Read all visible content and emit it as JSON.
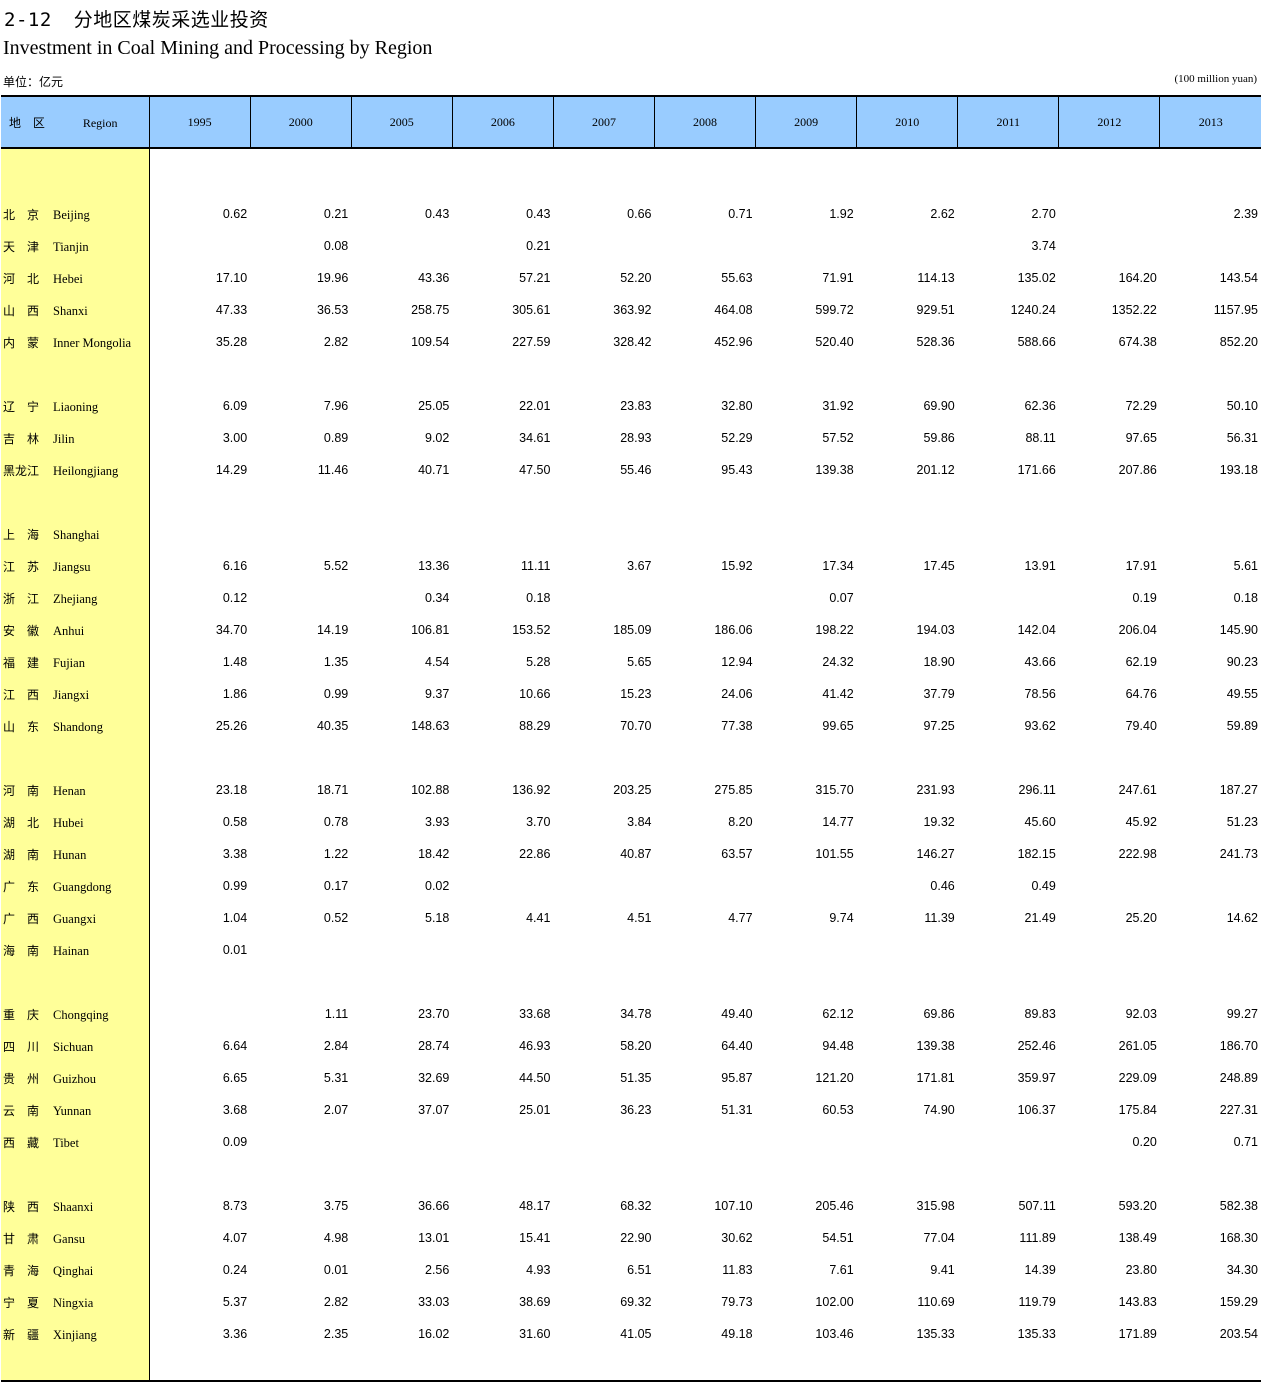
{
  "header": {
    "table_no": "2-12",
    "title_zh": "分地区煤炭采选业投资",
    "title_en": "Investment in Coal Mining and Processing by Region",
    "unit_zh": "单位：亿元",
    "unit_en": "(100 million yuan)"
  },
  "columns": {
    "region_zh": "地 区",
    "region_en": "Region",
    "years": [
      "1995",
      "2000",
      "2005",
      "2006",
      "2007",
      "2008",
      "2009",
      "2010",
      "2011",
      "2012",
      "2013"
    ]
  },
  "groups": [
    [
      {
        "zh": "北　京",
        "en": "Beijing",
        "v": [
          "0.62",
          "0.21",
          "0.43",
          "0.43",
          "0.66",
          "0.71",
          "1.92",
          "2.62",
          "2.70",
          "",
          "2.39"
        ]
      },
      {
        "zh": "天　津",
        "en": "Tianjin",
        "v": [
          "",
          "0.08",
          "",
          "0.21",
          "",
          "",
          "",
          "",
          "3.74",
          "",
          ""
        ]
      },
      {
        "zh": "河　北",
        "en": "Hebei",
        "v": [
          "17.10",
          "19.96",
          "43.36",
          "57.21",
          "52.20",
          "55.63",
          "71.91",
          "114.13",
          "135.02",
          "164.20",
          "143.54"
        ]
      },
      {
        "zh": "山　西",
        "en": "Shanxi",
        "v": [
          "47.33",
          "36.53",
          "258.75",
          "305.61",
          "363.92",
          "464.08",
          "599.72",
          "929.51",
          "1240.24",
          "1352.22",
          "1157.95"
        ]
      },
      {
        "zh": "内　蒙",
        "en": "Inner Mongolia",
        "v": [
          "35.28",
          "2.82",
          "109.54",
          "227.59",
          "328.42",
          "452.96",
          "520.40",
          "528.36",
          "588.66",
          "674.38",
          "852.20"
        ]
      }
    ],
    [
      {
        "zh": "辽　宁",
        "en": "Liaoning",
        "v": [
          "6.09",
          "7.96",
          "25.05",
          "22.01",
          "23.83",
          "32.80",
          "31.92",
          "69.90",
          "62.36",
          "72.29",
          "50.10"
        ]
      },
      {
        "zh": "吉　林",
        "en": "Jilin",
        "v": [
          "3.00",
          "0.89",
          "9.02",
          "34.61",
          "28.93",
          "52.29",
          "57.52",
          "59.86",
          "88.11",
          "97.65",
          "56.31"
        ]
      },
      {
        "zh": "黑龙江",
        "en": "Heilongjiang",
        "v": [
          "14.29",
          "11.46",
          "40.71",
          "47.50",
          "55.46",
          "95.43",
          "139.38",
          "201.12",
          "171.66",
          "207.86",
          "193.18"
        ]
      }
    ],
    [
      {
        "zh": "上　海",
        "en": "Shanghai",
        "v": [
          "",
          "",
          "",
          "",
          "",
          "",
          "",
          "",
          "",
          "",
          ""
        ]
      },
      {
        "zh": "江　苏",
        "en": "Jiangsu",
        "v": [
          "6.16",
          "5.52",
          "13.36",
          "11.11",
          "3.67",
          "15.92",
          "17.34",
          "17.45",
          "13.91",
          "17.91",
          "5.61"
        ]
      },
      {
        "zh": "浙　江",
        "en": "Zhejiang",
        "v": [
          "0.12",
          "",
          "0.34",
          "0.18",
          "",
          "",
          "0.07",
          "",
          "",
          "0.19",
          "0.18"
        ]
      },
      {
        "zh": "安　徽",
        "en": "Anhui",
        "v": [
          "34.70",
          "14.19",
          "106.81",
          "153.52",
          "185.09",
          "186.06",
          "198.22",
          "194.03",
          "142.04",
          "206.04",
          "145.90"
        ]
      },
      {
        "zh": "福　建",
        "en": "Fujian",
        "v": [
          "1.48",
          "1.35",
          "4.54",
          "5.28",
          "5.65",
          "12.94",
          "24.32",
          "18.90",
          "43.66",
          "62.19",
          "90.23"
        ]
      },
      {
        "zh": "江　西",
        "en": "Jiangxi",
        "v": [
          "1.86",
          "0.99",
          "9.37",
          "10.66",
          "15.23",
          "24.06",
          "41.42",
          "37.79",
          "78.56",
          "64.76",
          "49.55"
        ]
      },
      {
        "zh": "山　东",
        "en": "Shandong",
        "v": [
          "25.26",
          "40.35",
          "148.63",
          "88.29",
          "70.70",
          "77.38",
          "99.65",
          "97.25",
          "93.62",
          "79.40",
          "59.89"
        ]
      }
    ],
    [
      {
        "zh": "河　南",
        "en": "Henan",
        "v": [
          "23.18",
          "18.71",
          "102.88",
          "136.92",
          "203.25",
          "275.85",
          "315.70",
          "231.93",
          "296.11",
          "247.61",
          "187.27"
        ]
      },
      {
        "zh": "湖　北",
        "en": "Hubei",
        "v": [
          "0.58",
          "0.78",
          "3.93",
          "3.70",
          "3.84",
          "8.20",
          "14.77",
          "19.32",
          "45.60",
          "45.92",
          "51.23"
        ]
      },
      {
        "zh": "湖　南",
        "en": "Hunan",
        "v": [
          "3.38",
          "1.22",
          "18.42",
          "22.86",
          "40.87",
          "63.57",
          "101.55",
          "146.27",
          "182.15",
          "222.98",
          "241.73"
        ]
      },
      {
        "zh": "广　东",
        "en": "Guangdong",
        "v": [
          "0.99",
          "0.17",
          "0.02",
          "",
          "",
          "",
          "",
          "0.46",
          "0.49",
          "",
          ""
        ]
      },
      {
        "zh": "广　西",
        "en": "Guangxi",
        "v": [
          "1.04",
          "0.52",
          "5.18",
          "4.41",
          "4.51",
          "4.77",
          "9.74",
          "11.39",
          "21.49",
          "25.20",
          "14.62"
        ]
      },
      {
        "zh": "海　南",
        "en": "Hainan",
        "v": [
          "0.01",
          "",
          "",
          "",
          "",
          "",
          "",
          "",
          "",
          "",
          ""
        ]
      }
    ],
    [
      {
        "zh": "重　庆",
        "en": "Chongqing",
        "v": [
          "",
          "1.11",
          "23.70",
          "33.68",
          "34.78",
          "49.40",
          "62.12",
          "69.86",
          "89.83",
          "92.03",
          "99.27"
        ]
      },
      {
        "zh": "四　川",
        "en": "Sichuan",
        "v": [
          "6.64",
          "2.84",
          "28.74",
          "46.93",
          "58.20",
          "64.40",
          "94.48",
          "139.38",
          "252.46",
          "261.05",
          "186.70"
        ]
      },
      {
        "zh": "贵　州",
        "en": "Guizhou",
        "v": [
          "6.65",
          "5.31",
          "32.69",
          "44.50",
          "51.35",
          "95.87",
          "121.20",
          "171.81",
          "359.97",
          "229.09",
          "248.89"
        ]
      },
      {
        "zh": "云　南",
        "en": "Yunnan",
        "v": [
          "3.68",
          "2.07",
          "37.07",
          "25.01",
          "36.23",
          "51.31",
          "60.53",
          "74.90",
          "106.37",
          "175.84",
          "227.31"
        ]
      },
      {
        "zh": "西　藏",
        "en": "Tibet",
        "v": [
          "0.09",
          "",
          "",
          "",
          "",
          "",
          "",
          "",
          "",
          "0.20",
          "0.71"
        ]
      }
    ],
    [
      {
        "zh": "陕　西",
        "en": "Shaanxi",
        "v": [
          "8.73",
          "3.75",
          "36.66",
          "48.17",
          "68.32",
          "107.10",
          "205.46",
          "315.98",
          "507.11",
          "593.20",
          "582.38"
        ]
      },
      {
        "zh": "甘　肃",
        "en": "Gansu",
        "v": [
          "4.07",
          "4.98",
          "13.01",
          "15.41",
          "22.90",
          "30.62",
          "54.51",
          "77.04",
          "111.89",
          "138.49",
          "168.30"
        ]
      },
      {
        "zh": "青　海",
        "en": "Qinghai",
        "v": [
          "0.24",
          "0.01",
          "2.56",
          "4.93",
          "6.51",
          "11.83",
          "7.61",
          "9.41",
          "14.39",
          "23.80",
          "34.30"
        ]
      },
      {
        "zh": "宁　夏",
        "en": "Ningxia",
        "v": [
          "5.37",
          "2.82",
          "33.03",
          "38.69",
          "69.32",
          "79.73",
          "102.00",
          "110.69",
          "119.79",
          "143.83",
          "159.29"
        ]
      },
      {
        "zh": "新　疆",
        "en": "Xinjiang",
        "v": [
          "3.36",
          "2.35",
          "16.02",
          "31.60",
          "41.05",
          "49.18",
          "103.46",
          "135.33",
          "135.33",
          "171.89",
          "203.54"
        ]
      }
    ]
  ]
}
